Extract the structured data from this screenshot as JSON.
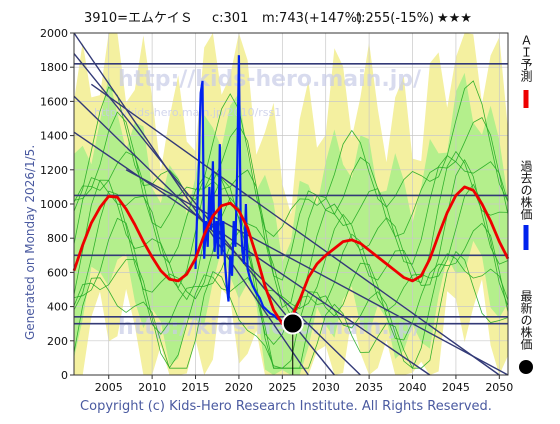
{
  "header": {
    "code_name": "3910=エムケイＳ",
    "current": "c:301",
    "max": "m:743(+147%)",
    "target": "t:255(-15%)",
    "stars": "★★★"
  },
  "watermarks": [
    "http://kids-hero.main.jp/",
    "http://kids-hero.main.jp/2010/rss1",
    "http://kids-hero.main.jp/"
  ],
  "generated_label": "Generated on Monday 2026/1/5.",
  "copyright": "Copyright (c) Kids-Hero Research Institute. All Rights Reserved.",
  "legend": {
    "forecast": "ＡＩ予測",
    "past": "過去の株価",
    "latest": "最新の株価"
  },
  "colors": {
    "forecast": "#ee0000",
    "past": "#0022ee",
    "latest": "#000000",
    "guide": "#333a77",
    "band_outer": "#f4f0a0",
    "band_inner": "#a8ee88",
    "paths": "#22aa22",
    "grid": "#c8c8c8"
  },
  "chart_data": {
    "type": "line",
    "xlim": [
      2001,
      2051
    ],
    "ylim": [
      0,
      2000
    ],
    "x_ticks": [
      2005,
      2010,
      2015,
      2020,
      2025,
      2030,
      2035,
      2040,
      2045,
      2050
    ],
    "y_ticks": [
      0,
      200,
      400,
      600,
      800,
      1000,
      1200,
      1400,
      1600,
      1800,
      2000
    ],
    "horizontal_levels": [
      300,
      340,
      700,
      1050,
      1820
    ],
    "diagonal_guides": [
      {
        "x": [
          2001,
          2028
        ],
        "y": [
          2000,
          0
        ]
      },
      {
        "x": [
          2001,
          2031
        ],
        "y": [
          1880,
          0
        ]
      },
      {
        "x": [
          2001,
          2034
        ],
        "y": [
          1630,
          0
        ]
      },
      {
        "x": [
          2001,
          2042
        ],
        "y": [
          1420,
          0
        ]
      },
      {
        "x": [
          2003,
          2050
        ],
        "y": [
          1700,
          0
        ]
      },
      {
        "x": [
          2007,
          2051
        ],
        "y": [
          1200,
          0
        ]
      }
    ],
    "series": [
      {
        "name": "過去の株価",
        "x": [
          2015.0,
          2015.2,
          2015.4,
          2015.5,
          2015.6,
          2015.8,
          2016.0,
          2016.2,
          2016.4,
          2016.6,
          2016.8,
          2017.0,
          2017.2,
          2017.4,
          2017.6,
          2017.8,
          2018.0,
          2018.2,
          2018.4,
          2018.6,
          2018.8,
          2019.0,
          2019.2,
          2019.4,
          2019.6,
          2019.8,
          2020.0,
          2020.2,
          2020.4,
          2020.6,
          2020.8,
          2021.0,
          2021.3,
          2021.6,
          2022.0,
          2022.4,
          2022.8,
          2023.2,
          2023.6,
          2024.0,
          2024.4,
          2024.8,
          2025.2,
          2025.6,
          2026.0
        ],
        "y": [
          620,
          980,
          1250,
          1500,
          1650,
          1720,
          680,
          900,
          750,
          1100,
          850,
          1250,
          720,
          900,
          680,
          1350,
          700,
          900,
          650,
          520,
          430,
          700,
          580,
          900,
          750,
          1200,
          1870,
          900,
          720,
          650,
          1000,
          620,
          560,
          520,
          480,
          450,
          400,
          380,
          360,
          350,
          330,
          320,
          300,
          310,
          301
        ]
      },
      {
        "name": "ＡＩ予測",
        "x": [
          2001,
          2002,
          2003,
          2004,
          2005,
          2006,
          2007,
          2008,
          2009,
          2010,
          2011,
          2012,
          2013,
          2014,
          2015,
          2016,
          2017,
          2018,
          2019,
          2020,
          2021,
          2022,
          2023,
          2024,
          2025,
          2026,
          2027,
          2028,
          2029,
          2030,
          2031,
          2032,
          2033,
          2034,
          2035,
          2036,
          2037,
          2038,
          2039,
          2040,
          2041,
          2042,
          2043,
          2044,
          2045,
          2046,
          2047,
          2048,
          2049,
          2050,
          2051
        ],
        "y": [
          610,
          760,
          890,
          980,
          1045,
          1040,
          970,
          880,
          780,
          690,
          610,
          560,
          550,
          590,
          680,
          820,
          930,
          990,
          1005,
          960,
          860,
          700,
          520,
          380,
          300,
          330,
          440,
          570,
          650,
          700,
          740,
          780,
          790,
          770,
          730,
          690,
          650,
          610,
          570,
          550,
          580,
          680,
          820,
          950,
          1050,
          1100,
          1080,
          1000,
          900,
          780,
          680
        ]
      }
    ],
    "latest_point": {
      "x": 2026.2,
      "y": 301
    }
  }
}
